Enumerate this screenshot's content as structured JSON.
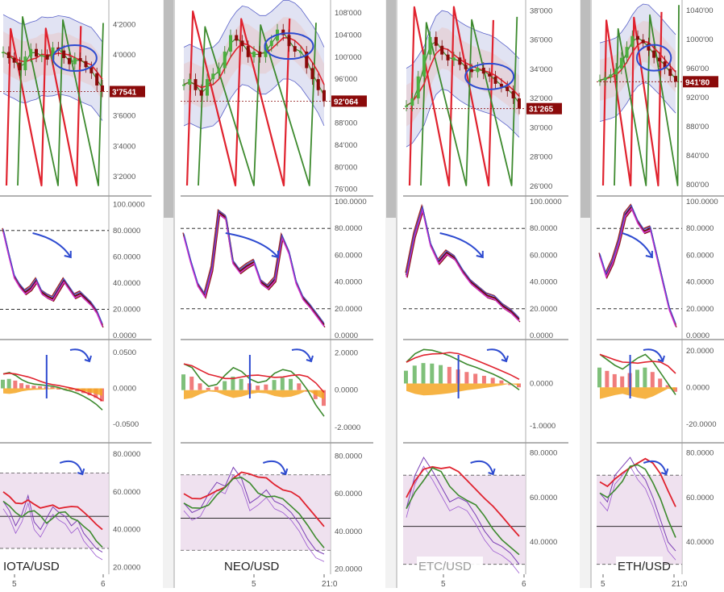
{
  "chart_data": [
    {
      "type": "line",
      "pair": "IOTA/USD",
      "last_price": "3'7541",
      "x_ticks": [
        "5",
        "6"
      ],
      "price_ticks": [
        "4'2000",
        "4'0000",
        "3'8000",
        "3'6000",
        "3'4000",
        "3'2000"
      ],
      "price_values": [
        4.2,
        4.0,
        3.8,
        3.6,
        3.4,
        3.2
      ],
      "price_ylim": [
        3.1,
        4.33
      ],
      "close": [
        4.02,
        3.98,
        3.95,
        3.9,
        3.99,
        4.04,
        3.99,
        4.0,
        3.97,
        4.05,
        4.03,
        3.98,
        3.94,
        3.98,
        3.96,
        3.92,
        3.88,
        3.8,
        3.76
      ],
      "stoch_ticks": [
        "100.0000",
        "80.0000",
        "60.0000",
        "40.0000",
        "20.0000",
        "0.0000"
      ],
      "stoch_values": [
        100,
        80,
        60,
        40,
        20,
        0
      ],
      "stoch_ylim": [
        0,
        102
      ],
      "stoch": [
        80,
        62,
        45,
        38,
        33,
        36,
        42,
        33,
        30,
        28,
        35,
        42,
        36,
        30,
        32,
        28,
        24,
        18,
        8
      ],
      "macd_ticks": [
        "0.0500",
        "0.0000",
        "-0.0500"
      ],
      "macd_values": [
        0.05,
        0.0,
        -0.05
      ],
      "macd_ylim": [
        -0.07,
        0.06
      ],
      "macd": [
        0.02,
        0.022,
        0.018,
        0.012,
        0.008,
        0.006,
        0.005,
        0.004,
        0.003,
        0.001,
        -0.002,
        -0.004,
        -0.007,
        -0.011,
        -0.016,
        -0.022,
        -0.03
      ],
      "rsi_ticks": [
        "80.0000",
        "60.0000",
        "40.0000",
        "20.0000"
      ],
      "rsi_values": [
        80,
        60,
        40,
        20
      ],
      "rsi_ylim": [
        18,
        83
      ],
      "rsi": [
        55,
        50,
        42,
        48,
        58,
        44,
        40,
        46,
        52,
        49,
        47,
        42,
        45,
        38,
        34,
        30,
        28
      ]
    },
    {
      "type": "line",
      "pair": "NEO/USD",
      "last_price": "92'064",
      "x_ticks": [
        "5",
        "21:0"
      ],
      "price_ticks": [
        "108'000",
        "104'000",
        "100'000",
        "96'000",
        "92'000",
        "88'000",
        "84'000",
        "80'000",
        "76'000"
      ],
      "price_values": [
        108,
        104,
        100,
        96,
        92,
        88,
        84,
        80,
        76
      ],
      "price_ylim": [
        75.5,
        109.5
      ],
      "close": [
        95,
        96,
        94,
        93,
        96,
        97,
        98,
        101,
        104,
        103,
        102,
        100,
        101,
        100,
        102,
        103,
        105,
        104,
        102,
        101,
        101,
        98,
        96,
        94,
        92
      ],
      "stoch_ticks": [
        "100.0000",
        "80.0000",
        "60.0000",
        "40.0000",
        "20.0000",
        "0.0000"
      ],
      "stoch_values": [
        100,
        80,
        60,
        40,
        20,
        0
      ],
      "stoch_ylim": [
        0,
        100
      ],
      "stoch": [
        75,
        55,
        38,
        30,
        50,
        92,
        88,
        55,
        48,
        52,
        55,
        40,
        36,
        42,
        74,
        62,
        40,
        28,
        22,
        15,
        8
      ],
      "macd_ticks": [
        "2.0000",
        "0.0000",
        "-2.0000"
      ],
      "macd_values": [
        2,
        0,
        -2
      ],
      "macd_ylim": [
        -2.6,
        2.4
      ],
      "macd": [
        1.4,
        1.2,
        0.6,
        0.2,
        0.3,
        0.8,
        1.2,
        1.0,
        0.6,
        0.4,
        0.5,
        0.9,
        1.1,
        1.0,
        0.6,
        0.0,
        -0.8,
        -1.4
      ],
      "rsi_ticks": [
        "80.0000",
        "60.0000",
        "40.0000",
        "20.0000"
      ],
      "rsi_values": [
        80,
        60,
        40,
        20
      ],
      "rsi_ylim": [
        19,
        84
      ],
      "rsi": [
        55,
        50,
        52,
        60,
        66,
        64,
        74,
        68,
        55,
        58,
        62,
        56,
        54,
        50,
        44,
        36,
        30,
        28
      ]
    },
    {
      "type": "line",
      "pair": "ETC/USD",
      "last_price": "31'265",
      "x_ticks": [
        "5",
        "6"
      ],
      "price_ticks": [
        "38'000",
        "36'000",
        "34'000",
        "32'000",
        "30'000",
        "28'000",
        "26'000"
      ],
      "price_values": [
        38,
        36,
        34,
        32,
        30,
        28,
        26
      ],
      "price_ylim": [
        25.6,
        38.4
      ],
      "close": [
        31.5,
        32.0,
        33.5,
        35.0,
        36.2,
        35.6,
        35.0,
        34.6,
        34.8,
        34.3,
        34.0,
        33.8,
        34.1,
        33.7,
        33.5,
        33.0,
        32.8,
        32.5,
        32.0,
        31.3
      ],
      "stoch_ticks": [
        "100.0000",
        "80.0000",
        "60.0000",
        "40.0000",
        "20.0000",
        "0.0000"
      ],
      "stoch_values": [
        100,
        80,
        60,
        40,
        20,
        0
      ],
      "stoch_ylim": [
        0,
        100
      ],
      "stoch": [
        45,
        75,
        95,
        68,
        55,
        62,
        58,
        48,
        40,
        35,
        30,
        28,
        22,
        18,
        12
      ],
      "macd_ticks": [
        "0.0000",
        "-1.0000"
      ],
      "macd_values": [
        0,
        -1
      ],
      "macd_ylim": [
        -1.3,
        0.9
      ],
      "macd": [
        0.5,
        0.7,
        0.8,
        0.78,
        0.72,
        0.65,
        0.55,
        0.45,
        0.38,
        0.3,
        0.22,
        0.12,
        0.0,
        -0.15
      ],
      "rsi_ticks": [
        "80.0000",
        "60.0000",
        "40.0000"
      ],
      "rsi_values": [
        80,
        60,
        40
      ],
      "rsi_ylim": [
        27,
        82
      ],
      "rsi": [
        55,
        70,
        78,
        72,
        65,
        58,
        60,
        58,
        52,
        45,
        40,
        38,
        35,
        30
      ]
    },
    {
      "type": "line",
      "pair": "ETH/USD",
      "last_price": "941'80",
      "x_ticks": [
        "5",
        "21:0"
      ],
      "price_ticks": [
        "1040'00",
        "1000'00",
        "960'00",
        "920'00",
        "880'00",
        "840'00",
        "800'00"
      ],
      "price_values": [
        1040,
        1000,
        960,
        920,
        880,
        840,
        800
      ],
      "price_ylim": [
        790,
        1048
      ],
      "close": [
        944,
        948,
        952,
        960,
        975,
        990,
        1005,
        1000,
        995,
        985,
        975,
        970,
        960,
        950,
        942
      ],
      "stoch_ticks": [
        "100.0000",
        "80.0000",
        "60.0000",
        "40.0000",
        "20.0000",
        "0.0000"
      ],
      "stoch_values": [
        100,
        80,
        60,
        40,
        20,
        0
      ],
      "stoch_ylim": [
        0,
        100
      ],
      "stoch": [
        60,
        45,
        55,
        70,
        90,
        96,
        85,
        78,
        80,
        60,
        40,
        20,
        8
      ],
      "macd_ticks": [
        "20.0000",
        "0.0000",
        "-20.0000"
      ],
      "macd_values": [
        20,
        0,
        -20
      ],
      "macd_ylim": [
        -28,
        23
      ],
      "macd": [
        18,
        15,
        12,
        10,
        13,
        16,
        18,
        14,
        8,
        2,
        -4
      ],
      "rsi_ticks": [
        "80.0000",
        "60.0000",
        "40.0000"
      ],
      "rsi_values": [
        80,
        60,
        40
      ],
      "rsi_ylim": [
        27,
        82
      ],
      "rsi": [
        62,
        58,
        70,
        74,
        78,
        72,
        68,
        60,
        50,
        40,
        36
      ]
    }
  ]
}
